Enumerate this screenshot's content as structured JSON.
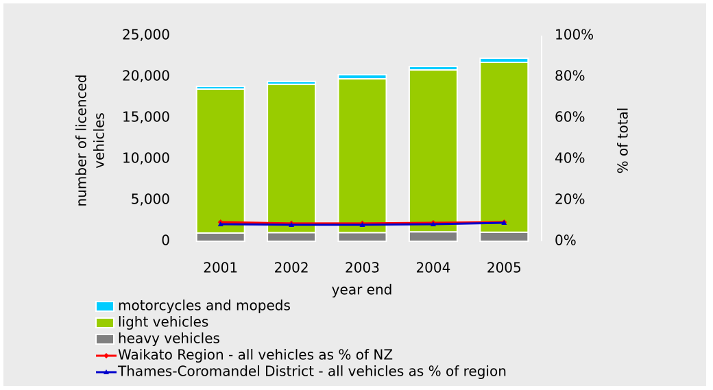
{
  "chart_data": {
    "type": "bar",
    "x_label": "year end",
    "y_label": [
      "number of licenced",
      "vehicles"
    ],
    "y2_label": "% of total",
    "categories": [
      "2001",
      "2002",
      "2003",
      "2004",
      "2005"
    ],
    "stacked": true,
    "series": [
      {
        "name": "motorcycles and mopeds",
        "type": "bar",
        "color": "#00ccff",
        "values": [
          330,
          350,
          500,
          420,
          500
        ]
      },
      {
        "name": "light vehicles",
        "type": "bar",
        "color": "#99cc00",
        "values": [
          17500,
          18030,
          18700,
          19680,
          20650
        ]
      },
      {
        "name": "heavy vehicles",
        "type": "bar",
        "color": "#808080",
        "values": [
          1000,
          1050,
          1050,
          1150,
          1100
        ]
      },
      {
        "name": "Waikato Region - all vehicles as % of NZ",
        "type": "line",
        "axis": "y2",
        "color": "#ff0000",
        "marker": "diamond",
        "values": [
          9.3,
          8.7,
          8.7,
          9.0,
          9.3
        ]
      },
      {
        "name": "Thames-Coromandel District - all vehicles as % of region",
        "type": "line",
        "axis": "y2",
        "color": "#0000cc",
        "marker": "triangle",
        "values": [
          8.3,
          8.0,
          8.0,
          8.3,
          9.0
        ]
      }
    ],
    "ylim": [
      0,
      25000
    ],
    "yticks": [
      0,
      {
        "value": 5000,
        "label": "5,000"
      },
      {
        "value": 10000,
        "label": "10,000"
      },
      {
        "value": 15000,
        "label": "15,000"
      },
      {
        "value": 20000,
        "label": "20,000"
      },
      {
        "value": 25000,
        "label": "25,000"
      }
    ],
    "y2lim": [
      0,
      100
    ],
    "y2ticks": [
      {
        "value": 0,
        "label": "0%"
      },
      {
        "value": 20,
        "label": "20%"
      },
      {
        "value": 40,
        "label": "40%"
      },
      {
        "value": 60,
        "label": "60%"
      },
      {
        "value": 80,
        "label": "80%"
      },
      {
        "value": 100,
        "label": "100%"
      }
    ],
    "grid": false,
    "legend": "bottom"
  }
}
